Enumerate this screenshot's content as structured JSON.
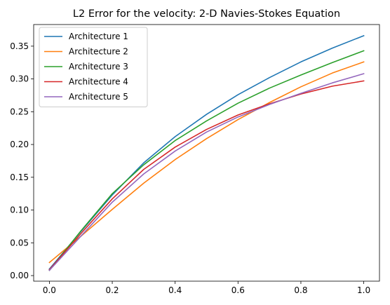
{
  "chart_data": {
    "type": "line",
    "title": "L2 Error for the velocity: 2-D Navies-Stokes Equation",
    "xlabel": "",
    "ylabel": "",
    "x": [
      0.0,
      0.1,
      0.2,
      0.3,
      0.4,
      0.5,
      0.6,
      0.7,
      0.8,
      0.9,
      1.0
    ],
    "xlim": [
      -0.05,
      1.05
    ],
    "ylim": [
      -0.0085,
      0.383
    ],
    "xticks": [
      0.0,
      0.2,
      0.4,
      0.6,
      0.8,
      1.0
    ],
    "xtick_labels": [
      "0.0",
      "0.2",
      "0.4",
      "0.6",
      "0.8",
      "1.0"
    ],
    "yticks": [
      0.0,
      0.05,
      0.1,
      0.15,
      0.2,
      0.25,
      0.3,
      0.35
    ],
    "ytick_labels": [
      "0.00",
      "0.05",
      "0.10",
      "0.15",
      "0.20",
      "0.25",
      "0.30",
      "0.35"
    ],
    "grid": false,
    "legend_position": "top-left",
    "series": [
      {
        "name": "Architecture 1",
        "color": "#1f77b4",
        "values": [
          0.01,
          0.067,
          0.123,
          0.172,
          0.212,
          0.246,
          0.276,
          0.302,
          0.326,
          0.347,
          0.366
        ]
      },
      {
        "name": "Architecture 2",
        "color": "#ff7f0e",
        "values": [
          0.02,
          0.06,
          0.101,
          0.141,
          0.177,
          0.209,
          0.238,
          0.264,
          0.288,
          0.309,
          0.326
        ]
      },
      {
        "name": "Architecture 3",
        "color": "#2ca02c",
        "values": [
          0.008,
          0.068,
          0.125,
          0.169,
          0.206,
          0.236,
          0.263,
          0.286,
          0.306,
          0.325,
          0.343
        ]
      },
      {
        "name": "Architecture 4",
        "color": "#d62728",
        "values": [
          0.009,
          0.064,
          0.117,
          0.162,
          0.196,
          0.223,
          0.245,
          0.262,
          0.277,
          0.289,
          0.297
        ]
      },
      {
        "name": "Architecture 5",
        "color": "#9467bd",
        "values": [
          0.008,
          0.06,
          0.112,
          0.155,
          0.19,
          0.219,
          0.242,
          0.261,
          0.278,
          0.294,
          0.308
        ]
      }
    ]
  }
}
